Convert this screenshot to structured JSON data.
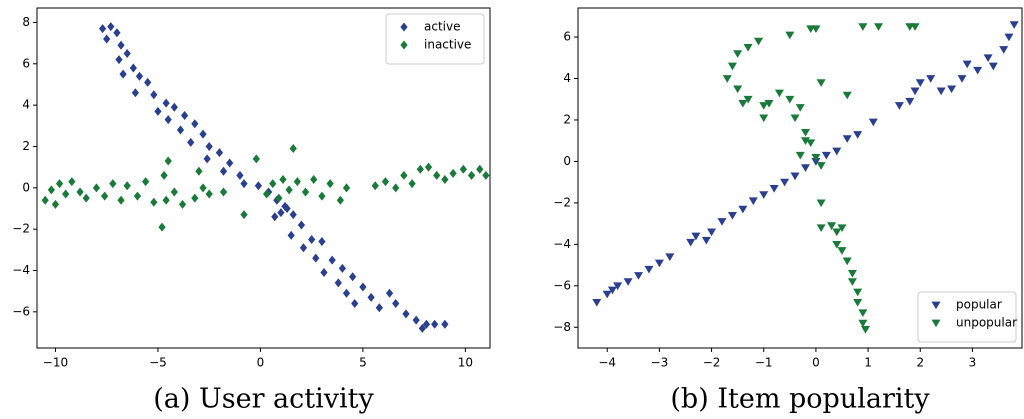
{
  "chart_data": [
    {
      "type": "scatter",
      "caption": "(a) User activity",
      "legend": "upper right",
      "marker": "diamond",
      "xlim": [
        -10.9,
        11.2
      ],
      "ylim": [
        -7.75,
        8.7
      ],
      "xticks": [
        {
          "value": -10,
          "label": "−10"
        },
        {
          "value": -5,
          "label": "−5"
        },
        0,
        5,
        10
      ],
      "yticks": [
        {
          "value": -6,
          "label": "−6"
        },
        {
          "value": -4,
          "label": "−4"
        },
        {
          "value": -2,
          "label": "−2"
        },
        0,
        2,
        4,
        6,
        8
      ],
      "series": [
        {
          "name": "active",
          "color": "#2b3f8f",
          "x": [
            -7.7,
            -7.3,
            -7,
            -7.5,
            -6.8,
            -6.5,
            -6.9,
            -6.2,
            -6.7,
            -5.9,
            -5.5,
            -6.1,
            -5.2,
            -4.6,
            -5,
            -4.2,
            -4.5,
            -3.7,
            -3.9,
            -3.2,
            -2.8,
            -3.4,
            -2.5,
            -2,
            -2.6,
            -1.5,
            -1.8,
            -1,
            -0.8,
            -0.1,
            0.4,
            0.8,
            1.2,
            0.7,
            1.6,
            2,
            1.5,
            2.5,
            2.1,
            3,
            2.7,
            3.5,
            3.1,
            4,
            3.8,
            4.5,
            4.2,
            5,
            4.6,
            5.4,
            5.8,
            6.3,
            6.6,
            7.1,
            7.6,
            8.1,
            7.9,
            8.5,
            9,
            1,
            1.3
          ],
          "values": [
            7.7,
            7.8,
            7.5,
            7.2,
            6.9,
            6.5,
            6.2,
            5.8,
            5.5,
            5.4,
            5.1,
            4.6,
            4.5,
            4.1,
            3.7,
            3.9,
            3.3,
            3.5,
            2.8,
            3.1,
            2.6,
            2.2,
            2,
            1.7,
            1.4,
            1.2,
            0.8,
            0.6,
            0.2,
            0.1,
            -0.2,
            -0.6,
            -0.9,
            -1.4,
            -1.3,
            -1.8,
            -2.3,
            -2.5,
            -2.9,
            -2.6,
            -3.4,
            -3.5,
            -4.1,
            -3.9,
            -4.6,
            -4.3,
            -5.1,
            -4.8,
            -5.6,
            -5.3,
            -5.8,
            -5.1,
            -5.6,
            -6.1,
            -6.4,
            -6.6,
            -6.8,
            -6.6,
            -6.6,
            -1.2,
            -1
          ]
        },
        {
          "name": "inactive",
          "color": "#1a7a3a",
          "x": [
            -10.5,
            -10.2,
            -9.8,
            -10,
            -9.5,
            -9.2,
            -8.8,
            -8.5,
            -8,
            -7.6,
            -7.2,
            -6.8,
            -6.5,
            -6,
            -5.6,
            -5.2,
            -4.8,
            -4.6,
            -4.2,
            -4.7,
            -4.5,
            -3.8,
            -3.2,
            -2.8,
            -2.5,
            -3,
            -1.8,
            -0.8,
            -0.2,
            0.3,
            0.6,
            0.9,
            1.1,
            1.4,
            1.6,
            1.8,
            2.2,
            2.6,
            3,
            3.4,
            3.9,
            4.2,
            5.6,
            6.1,
            6.6,
            7,
            7.4,
            7.8,
            8.2,
            8.6,
            9,
            9.4,
            9.9,
            10.3,
            10.7,
            11
          ],
          "values": [
            -0.6,
            -0.1,
            0.2,
            -0.8,
            -0.3,
            0.3,
            -0.2,
            -0.5,
            0,
            -0.4,
            0.2,
            -0.6,
            0.1,
            -0.4,
            0.3,
            -0.7,
            -1.9,
            -0.6,
            -0.2,
            0.6,
            1.3,
            -0.8,
            -0.5,
            0,
            -0.3,
            0.8,
            -0.2,
            -1.3,
            1.4,
            -0.3,
            0.2,
            -0.5,
            0.4,
            -0.1,
            1.9,
            0.3,
            -0.2,
            0.4,
            -0.4,
            0.2,
            -0.6,
            0,
            0.1,
            0.3,
            0,
            0.6,
            0.2,
            0.9,
            1,
            0.6,
            0.4,
            0.7,
            0.9,
            0.6,
            0.9,
            0.6
          ]
        }
      ]
    },
    {
      "type": "scatter",
      "caption": "(b) Item popularity",
      "legend": "lower right",
      "marker": "triangle-down",
      "xlim": [
        -4.56,
        3.95
      ],
      "ylim": [
        -9.0,
        7.4
      ],
      "xticks": [
        {
          "value": -4,
          "label": "−4"
        },
        {
          "value": -3,
          "label": "−3"
        },
        {
          "value": -2,
          "label": "−2"
        },
        {
          "value": -1,
          "label": "−1"
        },
        0,
        1,
        2,
        3
      ],
      "yticks": [
        {
          "value": -8,
          "label": "−8"
        },
        {
          "value": -6,
          "label": "−6"
        },
        {
          "value": -4,
          "label": "−4"
        },
        {
          "value": -2,
          "label": "−2"
        },
        0,
        2,
        4,
        6
      ],
      "series": [
        {
          "name": "popular",
          "color": "#2b3f8f",
          "x": [
            -4.2,
            -4,
            -3.9,
            -3.8,
            -3.6,
            -3.4,
            -3.2,
            -3,
            -2.8,
            -2.4,
            -2.3,
            -2.1,
            -2,
            -1.8,
            -1.6,
            -1.4,
            -1.2,
            -1,
            -0.8,
            -0.6,
            -0.4,
            -0.2,
            0,
            0.2,
            0.4,
            0.6,
            0.8,
            1.1,
            1.6,
            1.8,
            1.9,
            2,
            2.2,
            2.4,
            2.6,
            2.8,
            2.9,
            3.1,
            3.3,
            3.4,
            3.6,
            3.7,
            3.8
          ],
          "values": [
            -6.8,
            -6.4,
            -6.2,
            -6,
            -5.8,
            -5.5,
            -5.2,
            -4.9,
            -4.6,
            -3.9,
            -3.6,
            -3.8,
            -3.4,
            -2.9,
            -2.6,
            -2.3,
            -1.9,
            -1.6,
            -1.3,
            -1,
            -0.7,
            -0.3,
            0,
            0.3,
            0.5,
            1.1,
            1.3,
            1.9,
            2.7,
            2.9,
            3.4,
            3.8,
            4,
            3.4,
            3.5,
            4,
            4.7,
            4.4,
            5,
            4.6,
            5.4,
            6,
            6.6
          ]
        },
        {
          "name": "unpopular",
          "color": "#1a7a3a",
          "x": [
            -0.3,
            0,
            0.1,
            -0.1,
            -0.2,
            -0.4,
            -0.3,
            -0.5,
            -0.9,
            -1,
            -1,
            -1.3,
            -1.4,
            -1.5,
            -1.7,
            -1.6,
            -1.5,
            -1.3,
            -1.1,
            -0.5,
            -0.1,
            0,
            0.9,
            1.2,
            1.8,
            1.9,
            0.6,
            0.1,
            -0.7,
            -0.2,
            0.1,
            0.1,
            0.3,
            0.4,
            0.5,
            0.4,
            0.5,
            0.6,
            0.7,
            0.7,
            0.8,
            0.8,
            0.9,
            0.9,
            0.95
          ],
          "values": [
            0.3,
            0.2,
            -0.2,
            0.9,
            1.4,
            2.1,
            2.6,
            3,
            2.8,
            2.1,
            2.7,
            3,
            2.8,
            3.5,
            4,
            4.6,
            5.2,
            5.5,
            5.8,
            6.1,
            6.4,
            6.4,
            6.5,
            6.5,
            6.5,
            6.5,
            3.2,
            3.8,
            3.3,
            1,
            -2,
            -3.2,
            -3.1,
            -3.4,
            -3.2,
            -4,
            -4.3,
            -4.8,
            -5.4,
            -5.8,
            -6.3,
            -6.8,
            -7.3,
            -7.8,
            -8.1
          ]
        }
      ]
    }
  ]
}
